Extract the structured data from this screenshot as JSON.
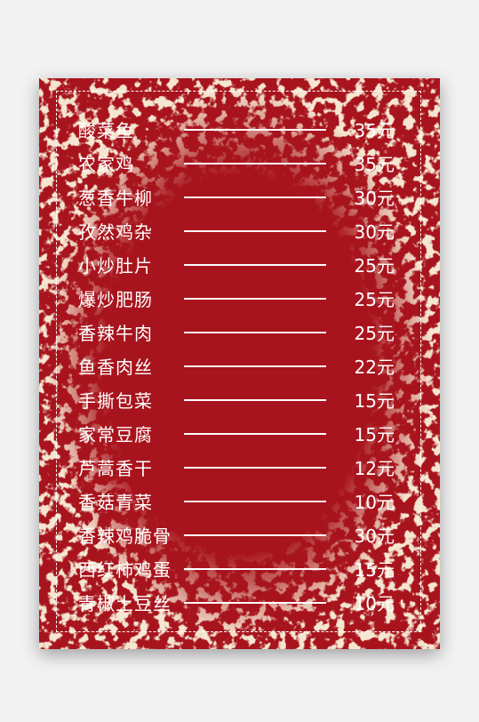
{
  "menu": {
    "items": [
      {
        "name": "酸菜鱼",
        "price": "35元"
      },
      {
        "name": "农家鸡",
        "price": "35元"
      },
      {
        "name": "葱香牛柳",
        "price": "30元"
      },
      {
        "name": "孜然鸡杂",
        "price": "30元"
      },
      {
        "name": "小炒肚片",
        "price": "25元"
      },
      {
        "name": "爆炒肥肠",
        "price": "25元"
      },
      {
        "name": "香辣牛肉",
        "price": "25元"
      },
      {
        "name": "鱼香肉丝",
        "price": "22元"
      },
      {
        "name": "手撕包菜",
        "price": "15元"
      },
      {
        "name": "家常豆腐",
        "price": "15元"
      },
      {
        "name": "芦蒿香干",
        "price": "12元"
      },
      {
        "name": "香菇青菜",
        "price": "10元"
      },
      {
        "name": "香辣鸡脆骨",
        "price": "30元"
      },
      {
        "name": "西红柿鸡蛋",
        "price": "15元"
      },
      {
        "name": "青椒土豆丝",
        "price": "10元"
      }
    ]
  },
  "colors": {
    "background": "#f2f2f2",
    "card": "#a8141d",
    "texture": "#e9c9a4",
    "text": "#ffffff"
  }
}
